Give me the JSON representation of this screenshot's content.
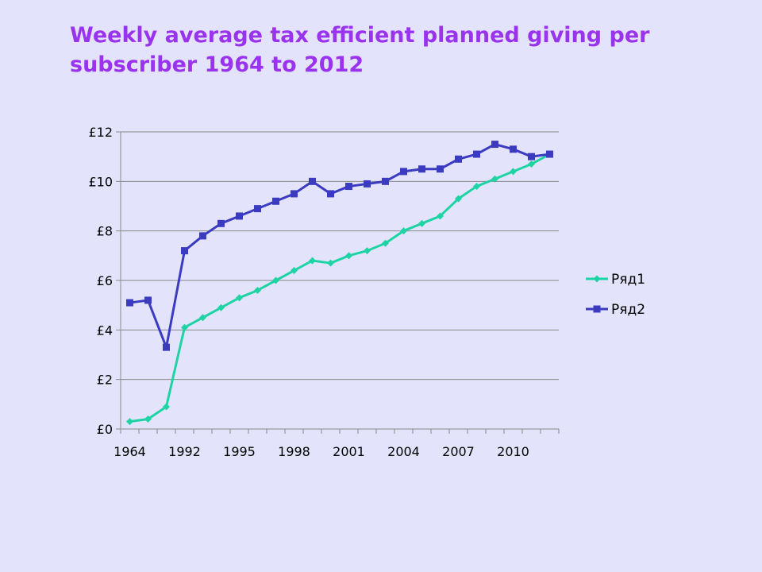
{
  "page": {
    "title": "Weekly average tax efficient planned giving per subscriber 1964 to 2012"
  },
  "chart_data": {
    "type": "line",
    "title": "Weekly average tax efficient planned giving per subscriber 1964 to 2012",
    "xlabel": "",
    "ylabel": "",
    "categories": [
      "1964",
      "",
      "",
      "1992",
      "",
      "",
      "1995",
      "",
      "",
      "1998",
      "",
      "",
      "2001",
      "",
      "",
      "2004",
      "",
      "",
      "2007",
      "",
      "",
      "2010",
      "",
      ""
    ],
    "x_tick_labels": [
      "1964",
      "1992",
      "1995",
      "1998",
      "2001",
      "2004",
      "2007",
      "2010"
    ],
    "y_tick_labels": [
      "£0",
      "£2",
      "£4",
      "£6",
      "£8",
      "£10",
      "£12"
    ],
    "ylim": [
      0,
      12
    ],
    "y_step": 2,
    "grid": true,
    "legend_position": "right",
    "series": [
      {
        "name": "Ряд1",
        "color": "#1fd4a4",
        "marker": "diamond",
        "values": [
          0.3,
          0.4,
          0.9,
          4.1,
          4.5,
          4.9,
          5.3,
          5.6,
          6.0,
          6.4,
          6.8,
          6.7,
          7.0,
          7.2,
          7.5,
          8.0,
          8.3,
          8.6,
          9.3,
          9.8,
          10.1,
          10.4,
          10.7,
          11.1
        ]
      },
      {
        "name": "Ряд2",
        "color": "#3b3bc2",
        "marker": "square",
        "values": [
          5.1,
          5.2,
          3.3,
          7.2,
          7.8,
          8.3,
          8.6,
          8.9,
          9.2,
          9.5,
          10.0,
          9.5,
          9.8,
          9.9,
          10.0,
          10.4,
          10.5,
          10.5,
          10.9,
          11.1,
          11.5,
          11.3,
          11.0,
          11.1
        ]
      }
    ]
  }
}
